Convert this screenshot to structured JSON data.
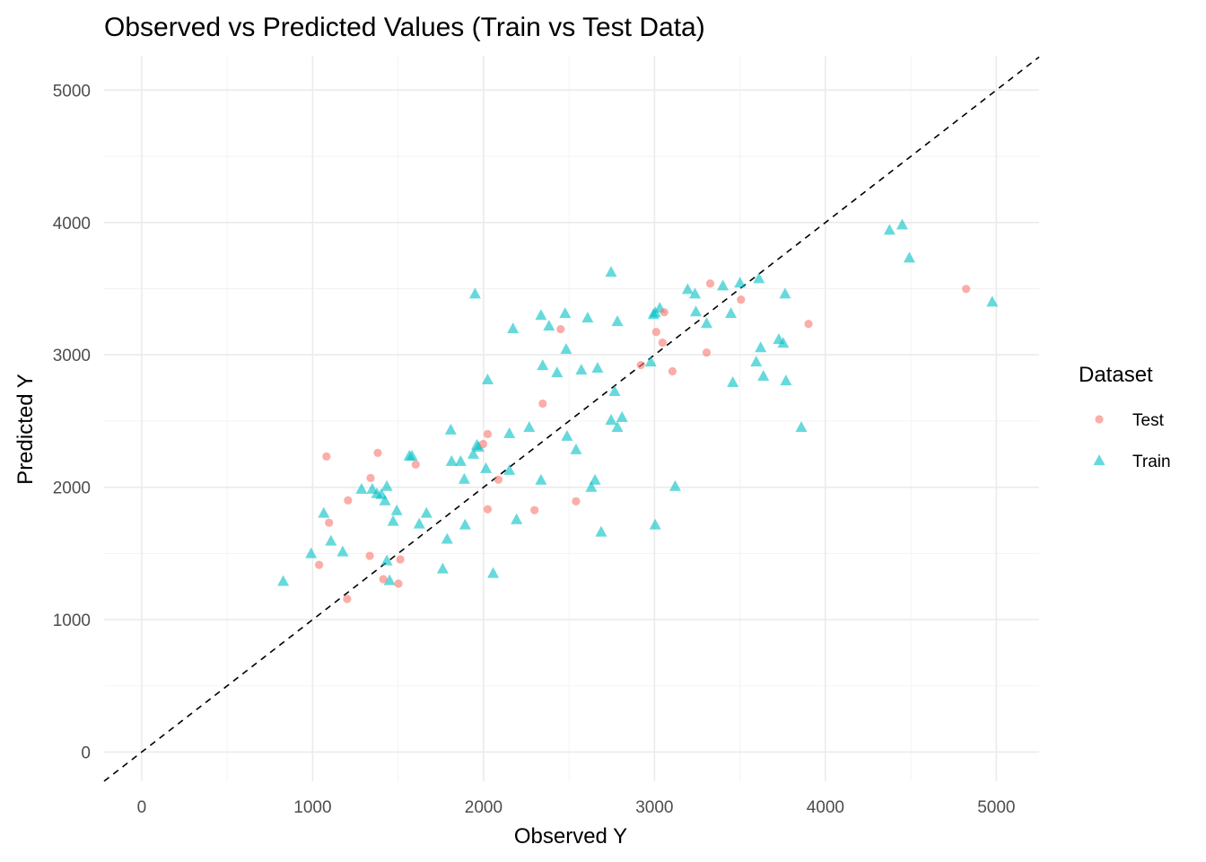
{
  "chart_data": {
    "type": "scatter",
    "title": "Observed vs Predicted Values (Train vs Test Data)",
    "xlabel": "Observed Y",
    "ylabel": "Predicted Y",
    "xlim": [
      -220,
      5250
    ],
    "ylim": [
      -220,
      5260
    ],
    "x_ticks": [
      0,
      1000,
      2000,
      3000,
      4000,
      5000
    ],
    "y_ticks": [
      0,
      1000,
      2000,
      3000,
      4000,
      5000
    ],
    "x_tick_labels": [
      "0",
      "1000",
      "2000",
      "3000",
      "4000",
      "5000"
    ],
    "y_tick_labels": [
      "0",
      "1000",
      "2000",
      "3000",
      "4000",
      "5000"
    ],
    "grid": true,
    "reference_line": {
      "slope": 1,
      "intercept": 0,
      "style": "dashed",
      "color": "#000000"
    },
    "legend": {
      "title": "Dataset",
      "placement": "right",
      "entries": [
        {
          "label": "Test",
          "shape": "circle",
          "color": "#F8766D"
        },
        {
          "label": "Train",
          "shape": "triangle",
          "color": "#00BFC4"
        }
      ]
    },
    "series": [
      {
        "name": "Test",
        "shape": "circle",
        "color": "#F8766D",
        "points": [
          [
            1081,
            2233
          ],
          [
            1096,
            1732
          ],
          [
            1038,
            1414
          ],
          [
            1207,
            1901
          ],
          [
            1202,
            1157
          ],
          [
            1339,
            2070
          ],
          [
            1334,
            1482
          ],
          [
            1381,
            2260
          ],
          [
            1413,
            1306
          ],
          [
            1502,
            1272
          ],
          [
            1513,
            1455
          ],
          [
            1603,
            2172
          ],
          [
            1998,
            2327
          ],
          [
            2024,
            2402
          ],
          [
            2024,
            1834
          ],
          [
            2087,
            2057
          ],
          [
            2298,
            1827
          ],
          [
            2346,
            2632
          ],
          [
            2451,
            3194
          ],
          [
            2541,
            1894
          ],
          [
            2920,
            2923
          ],
          [
            3010,
            3173
          ],
          [
            3047,
            3092
          ],
          [
            3057,
            3322
          ],
          [
            3105,
            2876
          ],
          [
            3305,
            3018
          ],
          [
            3326,
            3539
          ],
          [
            3506,
            3417
          ],
          [
            3901,
            3234
          ],
          [
            4823,
            3498
          ]
        ]
      },
      {
        "name": "Train",
        "shape": "triangle",
        "color": "#00BFC4",
        "points": [
          [
            828,
            1286
          ],
          [
            991,
            1495
          ],
          [
            1065,
            1800
          ],
          [
            1107,
            1590
          ],
          [
            1176,
            1509
          ],
          [
            1286,
            1982
          ],
          [
            1349,
            1982
          ],
          [
            1376,
            1949
          ],
          [
            1402,
            1942
          ],
          [
            1434,
            2003
          ],
          [
            1423,
            1894
          ],
          [
            1434,
            1441
          ],
          [
            1450,
            1292
          ],
          [
            1471,
            1739
          ],
          [
            1492,
            1820
          ],
          [
            1624,
            1719
          ],
          [
            1666,
            1800
          ],
          [
            1566,
            2233
          ],
          [
            1581,
            2233
          ],
          [
            1761,
            1380
          ],
          [
            1787,
            1604
          ],
          [
            1808,
            2429
          ],
          [
            1813,
            2192
          ],
          [
            1866,
            2192
          ],
          [
            1887,
            2057
          ],
          [
            1892,
            1712
          ],
          [
            1940,
            2246
          ],
          [
            1950,
            3457
          ],
          [
            1961,
            2314
          ],
          [
            1971,
            2300
          ],
          [
            2024,
            2808
          ],
          [
            2056,
            1346
          ],
          [
            2014,
            2138
          ],
          [
            2151,
            2402
          ],
          [
            2151,
            2124
          ],
          [
            2172,
            3194
          ],
          [
            2193,
            1752
          ],
          [
            2267,
            2449
          ],
          [
            2336,
            3295
          ],
          [
            2346,
            2916
          ],
          [
            2336,
            2050
          ],
          [
            2383,
            3214
          ],
          [
            2430,
            2862
          ],
          [
            2477,
            3309
          ],
          [
            2483,
            3038
          ],
          [
            2488,
            2382
          ],
          [
            2541,
            2280
          ],
          [
            2572,
            2882
          ],
          [
            2609,
            3275
          ],
          [
            2630,
            1996
          ],
          [
            2652,
            2050
          ],
          [
            2667,
            2896
          ],
          [
            2688,
            1658
          ],
          [
            2746,
            3620
          ],
          [
            2746,
            2503
          ],
          [
            2767,
            2720
          ],
          [
            2783,
            3248
          ],
          [
            2783,
            2449
          ],
          [
            2810,
            2524
          ],
          [
            2978,
            2943
          ],
          [
            2994,
            3302
          ],
          [
            3004,
            3315
          ],
          [
            3031,
            3349
          ],
          [
            3004,
            1712
          ],
          [
            3121,
            2003
          ],
          [
            3194,
            3491
          ],
          [
            3237,
            3457
          ],
          [
            3242,
            3322
          ],
          [
            3305,
            3234
          ],
          [
            3400,
            3518
          ],
          [
            3447,
            3309
          ],
          [
            3458,
            2788
          ],
          [
            3500,
            3539
          ],
          [
            3595,
            2943
          ],
          [
            3611,
            3572
          ],
          [
            3621,
            3051
          ],
          [
            3637,
            2835
          ],
          [
            3727,
            3113
          ],
          [
            3753,
            3085
          ],
          [
            3764,
            3457
          ],
          [
            3769,
            2801
          ],
          [
            3859,
            2449
          ],
          [
            4375,
            3938
          ],
          [
            4449,
            3978
          ],
          [
            4491,
            3728
          ],
          [
            4976,
            3396
          ]
        ]
      }
    ]
  }
}
